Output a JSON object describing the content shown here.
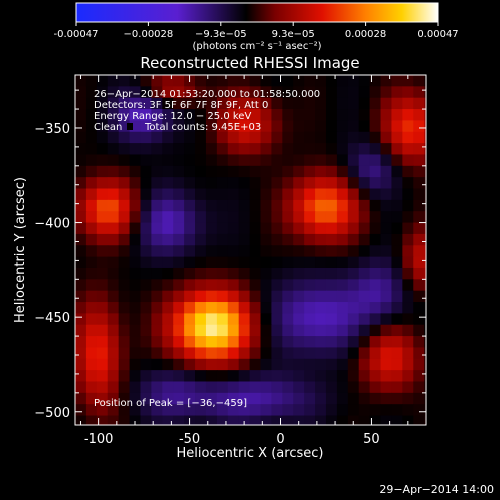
{
  "chart_data": {
    "type": "heatmap",
    "title": "Reconstructed RHESSI Image",
    "xlabel": "Heliocentric X (arcsec)",
    "ylabel": "Heliocentric Y (arcsec)",
    "xlim": [
      -113,
      80
    ],
    "ylim": [
      -507,
      -322
    ],
    "x_ticks": [
      -100,
      -50,
      0,
      50
    ],
    "x_tick_labels": [
      "-100",
      "-50",
      "0",
      "50"
    ],
    "y_ticks": [
      -350,
      -400,
      -450,
      -500
    ],
    "y_tick_labels": [
      "−350",
      "−400",
      "−450",
      "−500"
    ],
    "colorbar": {
      "range": [
        -0.00047,
        0.00047
      ],
      "tick_labels": [
        "-0.00047",
        "−0.00028",
        "−9.3e−05",
        "9.3e−05",
        "0.00028",
        "0.00047"
      ],
      "unit_label": "(photons cm⁻² s⁻¹ asec⁻²)",
      "colors": [
        "#1a2bff",
        "#5a1fd0",
        "#000000",
        "#7a0000",
        "#e01000",
        "#ff8000",
        "#ffd000",
        "#ffffff"
      ]
    },
    "annotations": [
      "26−Apr−2014 01:53:20.000 to 01:58:50.000",
      "Detectors: 3F 5F 6F 7F 8F 9F, Att 0",
      "Energy Range: 12.0 − 25.0 keV",
      "Clean",
      "Total counts: 9.45E+03"
    ],
    "peak_label": "Position of Peak = [−36,−459]",
    "peak": [
      -36,
      -459
    ],
    "sources": [
      {
        "x": -38,
        "y": -455,
        "amp": 1.0,
        "sx": 15,
        "sy": 13
      },
      {
        "x": 24,
        "y": -392,
        "amp": 0.62,
        "sx": 13,
        "sy": 12
      },
      {
        "x": -95,
        "y": -393,
        "amp": 0.55,
        "sx": 12,
        "sy": 11
      },
      {
        "x": 72,
        "y": -350,
        "amp": 0.48,
        "sx": 11,
        "sy": 13
      },
      {
        "x": -18,
        "y": -348,
        "amp": 0.38,
        "sx": 12,
        "sy": 11
      },
      {
        "x": -100,
        "y": -470,
        "amp": 0.45,
        "sx": 9,
        "sy": 20
      },
      {
        "x": 60,
        "y": -472,
        "amp": 0.4,
        "sx": 12,
        "sy": 12
      },
      {
        "x": 78,
        "y": -420,
        "amp": 0.32,
        "sx": 8,
        "sy": 12
      },
      {
        "x": -60,
        "y": -330,
        "amp": 0.28,
        "sx": 12,
        "sy": 6
      },
      {
        "x": 20,
        "y": -450,
        "amp": -0.36,
        "sx": 18,
        "sy": 14
      },
      {
        "x": -62,
        "y": -400,
        "amp": -0.32,
        "sx": 14,
        "sy": 12
      },
      {
        "x": -75,
        "y": -343,
        "amp": -0.36,
        "sx": 11,
        "sy": 10
      },
      {
        "x": -15,
        "y": -493,
        "amp": -0.3,
        "sx": 24,
        "sy": 9
      },
      {
        "x": 50,
        "y": -372,
        "amp": -0.26,
        "sx": 10,
        "sy": 10
      },
      {
        "x": 55,
        "y": -437,
        "amp": -0.26,
        "sx": 11,
        "sy": 12
      },
      {
        "x": -60,
        "y": -490,
        "amp": -0.22,
        "sx": 14,
        "sy": 10
      }
    ]
  },
  "timestamp": "29−Apr−2014 14:00"
}
